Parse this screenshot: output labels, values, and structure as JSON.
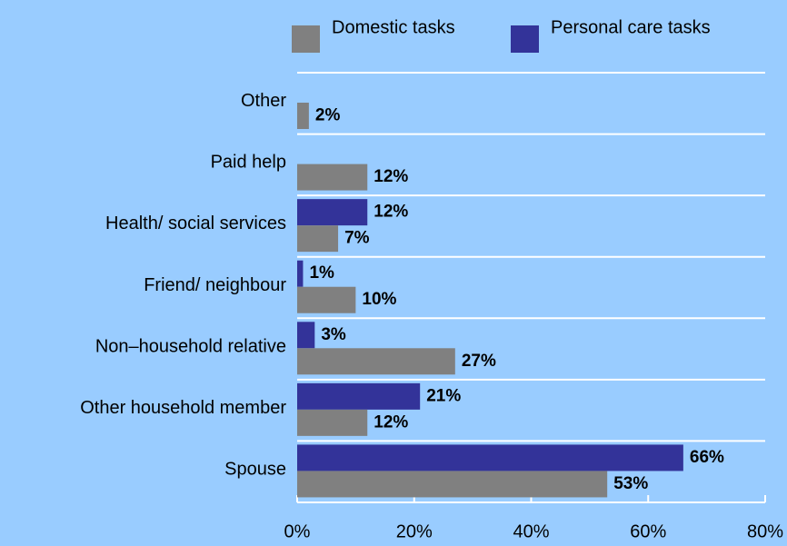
{
  "chart_data": {
    "type": "barh",
    "categories": [
      "Other",
      "Paid help",
      "Health/ social services",
      "Friend/ neighbour",
      "Non–household relative",
      "Other household member",
      "Spouse"
    ],
    "series": [
      {
        "name": "Domestic tasks",
        "color": "#808080",
        "values": [
          2,
          12,
          7,
          10,
          27,
          12,
          53
        ],
        "value_labels": [
          "2%",
          "12%",
          "7%",
          "10%",
          "27%",
          "12%",
          "53%"
        ]
      },
      {
        "name": "Personal care tasks",
        "color": "#333399",
        "values": [
          null,
          null,
          12,
          1,
          3,
          21,
          66
        ],
        "value_labels": [
          null,
          null,
          "12%",
          "1%",
          "3%",
          "21%",
          "66%"
        ]
      }
    ],
    "xlim": [
      0,
      80
    ],
    "xticks": [
      {
        "value": 0,
        "label": "0%"
      },
      {
        "value": 20,
        "label": "20%"
      },
      {
        "value": 40,
        "label": "40%"
      },
      {
        "value": 60,
        "label": "60%"
      },
      {
        "value": 80,
        "label": "80%"
      }
    ],
    "legend": "top"
  }
}
